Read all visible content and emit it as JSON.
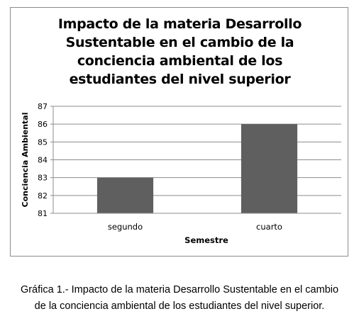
{
  "chart_data": {
    "type": "bar",
    "title_lines": [
      "Impacto de la materia Desarrollo",
      "Sustentable en el cambio de la",
      "conciencia ambiental de los",
      "estudiantes del nivel superior"
    ],
    "categories": [
      "segundo",
      "cuarto"
    ],
    "values": [
      83,
      86
    ],
    "xlabel": "Semestre",
    "ylabel": "Conciencia Ambiental",
    "ylim": [
      81,
      87
    ],
    "yticks": [
      81,
      82,
      83,
      84,
      85,
      86,
      87
    ],
    "grid": true,
    "legend": "none",
    "bar_color": "#5f5f5f",
    "grid_color": "#8c8c8c"
  },
  "caption": {
    "line1": "Gráfica 1.- Impacto de la materia Desarrollo Sustentable en el cambio",
    "line2": "de la conciencia ambiental de los estudiantes del nivel superior."
  }
}
